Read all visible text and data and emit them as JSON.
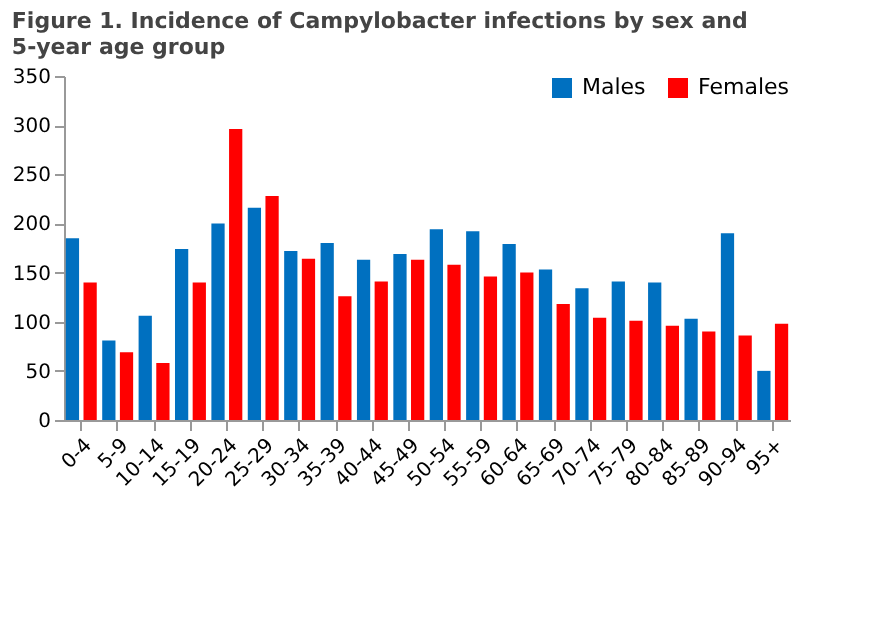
{
  "chart_data": {
    "type": "bar",
    "title": "Figure 1. Incidence of Campylobacter infections by sex and 5-year age group",
    "categories": [
      "0-4",
      "5-9",
      "10-14",
      "15-19",
      "20-24",
      "25-29",
      "30-34",
      "35-39",
      "40-44",
      "45-49",
      "50-54",
      "55-59",
      "60-64",
      "65-69",
      "70-74",
      "75-79",
      "80-84",
      "85-89",
      "90-94",
      "95+"
    ],
    "series": [
      {
        "name": "Males",
        "color": "#0070c0",
        "values": [
          185,
          81,
          106,
          174,
          200,
          216,
          172,
          180,
          163,
          169,
          194,
          192,
          179,
          153,
          134,
          141,
          140,
          103,
          190,
          50
        ]
      },
      {
        "name": "Females",
        "color": "#ff0000",
        "values": [
          140,
          69,
          58,
          140,
          296,
          228,
          164,
          126,
          141,
          163,
          158,
          146,
          150,
          118,
          104,
          101,
          96,
          90,
          86,
          98
        ]
      }
    ],
    "ylim": [
      0,
      350
    ],
    "yticks": [
      0,
      50,
      100,
      150,
      200,
      250,
      300,
      350
    ],
    "grid": false,
    "legend": "top right"
  }
}
